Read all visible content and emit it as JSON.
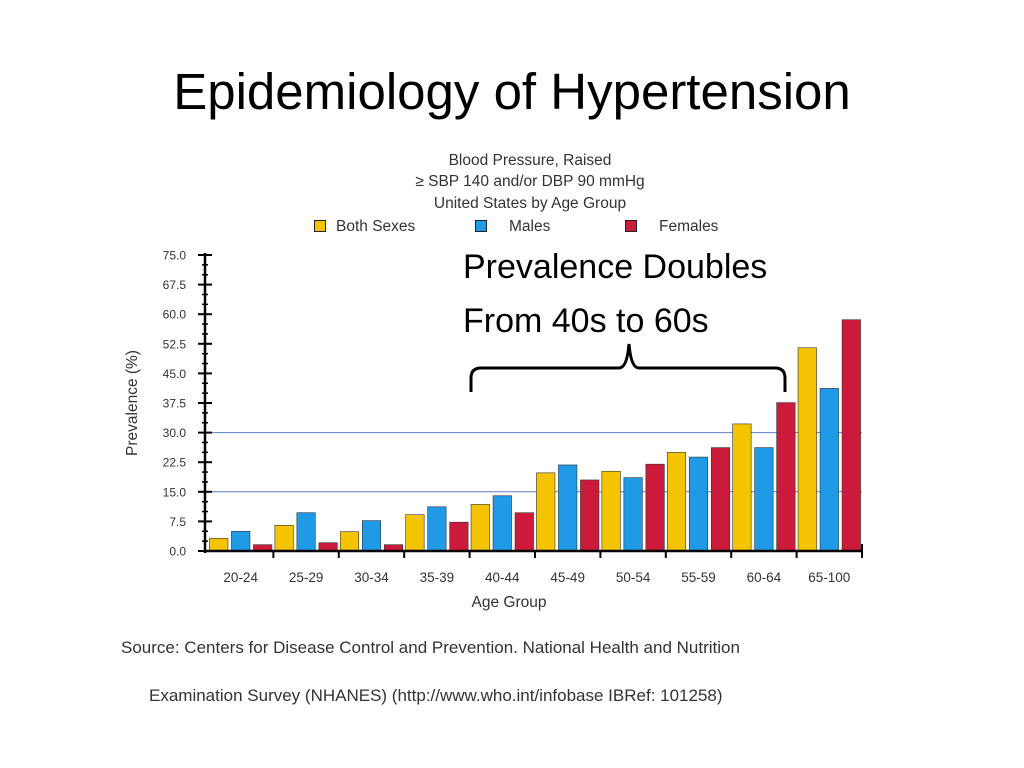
{
  "slide": {
    "title": "Epidemiology of Hypertension"
  },
  "chart_data": {
    "type": "bar",
    "title": [
      "Blood Pressure, Raised",
      "≥ SBP 140 and/or DBP 90 mmHg",
      "United States by Age Group"
    ],
    "xlabel": "Age Group",
    "ylabel": "Prevalence (%)",
    "ylim": [
      0,
      75
    ],
    "yticks": [
      "75.0",
      "67.5",
      "60.0",
      "52.5",
      "45.0",
      "37.5",
      "30.0",
      "22.5",
      "15.0",
      "7.5",
      "0.0"
    ],
    "gridlines": [
      15,
      30
    ],
    "categories": [
      "20-24",
      "25-29",
      "30-34",
      "35-39",
      "40-44",
      "45-49",
      "50-54",
      "55-59",
      "60-64",
      "65-100"
    ],
    "series": [
      {
        "name": "Both Sexes",
        "color": "#f5c400",
        "values": [
          3.2,
          6.5,
          4.9,
          9.2,
          11.8,
          19.8,
          20.2,
          25.0,
          32.2,
          51.5
        ]
      },
      {
        "name": "Males",
        "color": "#1f9ae6",
        "values": [
          5.0,
          9.7,
          7.7,
          11.2,
          14.0,
          21.8,
          18.6,
          23.8,
          26.2,
          41.2
        ]
      },
      {
        "name": "Females",
        "color": "#cc1a3a",
        "values": [
          1.6,
          2.1,
          1.6,
          7.3,
          9.7,
          18.0,
          22.0,
          26.2,
          37.6,
          58.6
        ]
      }
    ],
    "annotation": {
      "lines": [
        "Prevalence Doubles",
        "From 40s to 60s"
      ]
    }
  },
  "source": {
    "line1": "Source: Centers for Disease Control and Prevention. National Health and Nutrition",
    "line2": "Examination Survey (NHANES)  (http://www.who.int/infobase IBRef: 101258)"
  }
}
